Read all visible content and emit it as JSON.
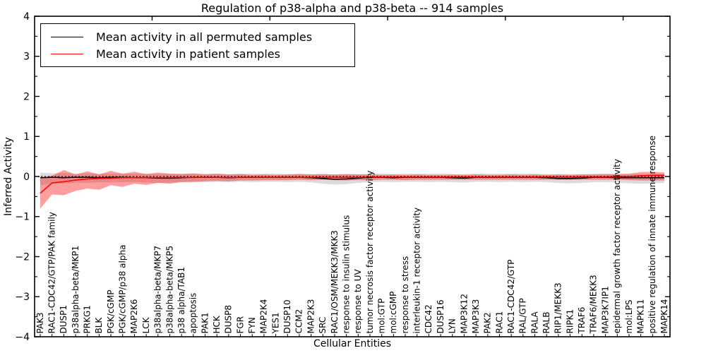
{
  "chart_data": {
    "type": "line",
    "title": "Regulation of p38-alpha and p38-beta -- 914 samples",
    "xlabel": "Cellular Entities",
    "ylabel": "Inferred Activity",
    "ylim": [
      -4,
      4
    ],
    "ytick_values": [
      -4,
      -3,
      -2,
      -1,
      0,
      1,
      2,
      3,
      4
    ],
    "ytick_labels": [
      "−4",
      "−3",
      "−2",
      "−1",
      "0",
      "1",
      "2",
      "3",
      "4"
    ],
    "grid": false,
    "zero_line_style": "black dotted",
    "legend_position": "upper-left",
    "categories": [
      "PAK3",
      "RAC1-CDC42/GTP/PAK family",
      "DUSP1",
      "p38alpha-beta/MKP1",
      "PRKG1",
      "BLK",
      "PGK/cGMP",
      "PGK/cGMP/p38 alpha",
      "MAP2K6",
      "LCK",
      "p38alpha-beta/MKP7",
      "p38alpha-beta/MKP5",
      "p38 alpha/TAB1",
      "apoptosis",
      "PAK1",
      "HCK",
      "DUSP8",
      "FGR",
      "FYN",
      "MAP2K4",
      "YES1",
      "DUSP10",
      "CCM2",
      "MAP2K3",
      "SRC",
      "RAC1/OSM/MEKK3/MKK3",
      "response to insulin stimulus",
      "response to UV",
      "tumor necrosis factor receptor activity",
      "mol:GTP",
      "mol:cGMP",
      "response to stress",
      "interleukin-1 receptor activity",
      "CDC42",
      "DUSP16",
      "LYN",
      "MAP3K12",
      "MAP3K3",
      "PAK2",
      "RAC1",
      "RAC1-CDC42/GTP",
      "RAL/GTP",
      "RALA",
      "RALB",
      "RIP1/MEKK3",
      "RIPK1",
      "TRAF6",
      "TRAF6/MEKK3",
      "MAP3K7IP1",
      "epidermal growth factor receptor activity",
      "mol:LPS",
      "MAPK11",
      "positive regulation of innate immune response",
      "MAPK14"
    ],
    "series": [
      {
        "name": "Mean activity in all permuted samples",
        "color": "#000000",
        "band_color": "#000000",
        "band_opacity": 0.14,
        "values": [
          -0.03,
          -0.02,
          -0.03,
          -0.02,
          -0.02,
          -0.03,
          -0.02,
          -0.02,
          -0.03,
          -0.03,
          -0.04,
          -0.04,
          -0.03,
          -0.02,
          -0.02,
          -0.02,
          -0.03,
          -0.02,
          -0.02,
          -0.02,
          -0.02,
          -0.02,
          -0.02,
          -0.03,
          -0.05,
          -0.07,
          -0.06,
          -0.04,
          -0.02,
          -0.02,
          -0.03,
          -0.02,
          -0.02,
          -0.02,
          -0.02,
          -0.03,
          -0.04,
          -0.02,
          -0.02,
          -0.02,
          -0.02,
          -0.02,
          -0.02,
          -0.03,
          -0.05,
          -0.05,
          -0.04,
          -0.02,
          -0.02,
          -0.03,
          -0.03,
          -0.03,
          -0.03,
          -0.03
        ],
        "upper": [
          0.1,
          0.08,
          0.09,
          0.07,
          0.08,
          0.07,
          0.07,
          0.07,
          0.07,
          0.07,
          0.06,
          0.07,
          0.07,
          0.07,
          0.07,
          0.07,
          0.06,
          0.07,
          0.07,
          0.07,
          0.07,
          0.06,
          0.07,
          0.06,
          0.06,
          0.05,
          0.06,
          0.06,
          0.07,
          0.07,
          0.06,
          0.07,
          0.07,
          0.07,
          0.07,
          0.06,
          0.06,
          0.07,
          0.07,
          0.07,
          0.07,
          0.07,
          0.07,
          0.06,
          0.06,
          0.06,
          0.06,
          0.07,
          0.07,
          0.06,
          0.06,
          0.06,
          0.06,
          0.06
        ],
        "lower": [
          -0.22,
          -0.17,
          -0.18,
          -0.15,
          -0.16,
          -0.14,
          -0.15,
          -0.14,
          -0.14,
          -0.15,
          -0.16,
          -0.15,
          -0.14,
          -0.15,
          -0.14,
          -0.13,
          -0.14,
          -0.13,
          -0.14,
          -0.13,
          -0.13,
          -0.14,
          -0.13,
          -0.15,
          -0.18,
          -0.2,
          -0.19,
          -0.16,
          -0.14,
          -0.13,
          -0.14,
          -0.13,
          -0.13,
          -0.14,
          -0.13,
          -0.14,
          -0.15,
          -0.13,
          -0.13,
          -0.14,
          -0.13,
          -0.14,
          -0.13,
          -0.14,
          -0.16,
          -0.17,
          -0.16,
          -0.14,
          -0.14,
          -0.15,
          -0.17,
          -0.18,
          -0.17,
          -0.16
        ]
      },
      {
        "name": "Mean activity in patient samples",
        "color": "#ff0000",
        "band_color": "#ff0000",
        "band_opacity": 0.38,
        "values": [
          -0.42,
          -0.16,
          -0.13,
          -0.09,
          -0.06,
          -0.05,
          -0.04,
          -0.03,
          -0.03,
          -0.025,
          -0.03,
          -0.025,
          -0.02,
          -0.025,
          -0.02,
          -0.02,
          -0.025,
          -0.02,
          -0.02,
          -0.02,
          -0.02,
          -0.02,
          -0.02,
          -0.02,
          -0.02,
          -0.02,
          -0.02,
          -0.02,
          -0.015,
          -0.015,
          -0.015,
          -0.015,
          -0.015,
          -0.015,
          -0.015,
          -0.015,
          -0.015,
          -0.015,
          -0.015,
          -0.015,
          -0.015,
          -0.015,
          -0.015,
          -0.015,
          -0.015,
          -0.015,
          -0.01,
          -0.01,
          -0.01,
          -0.005,
          0.0,
          0.02,
          0.03,
          0.03
        ],
        "upper": [
          -0.05,
          0.02,
          0.16,
          0.05,
          0.13,
          0.05,
          0.14,
          0.07,
          0.12,
          0.06,
          0.1,
          0.07,
          0.06,
          0.08,
          0.05,
          0.07,
          0.05,
          0.06,
          0.04,
          0.05,
          0.04,
          0.05,
          0.06,
          0.05,
          0.06,
          0.05,
          0.06,
          0.05,
          0.05,
          0.04,
          0.05,
          0.04,
          0.05,
          0.04,
          0.04,
          0.05,
          0.04,
          0.05,
          0.04,
          0.04,
          0.05,
          0.04,
          0.05,
          0.04,
          0.05,
          0.04,
          0.05,
          0.05,
          0.06,
          0.06,
          0.07,
          0.11,
          0.12,
          0.1
        ],
        "lower": [
          -0.8,
          -0.45,
          -0.47,
          -0.36,
          -0.3,
          -0.33,
          -0.22,
          -0.26,
          -0.18,
          -0.21,
          -0.16,
          -0.18,
          -0.14,
          -0.13,
          -0.12,
          -0.11,
          -0.12,
          -0.1,
          -0.1,
          -0.09,
          -0.09,
          -0.09,
          -0.08,
          -0.09,
          -0.08,
          -0.09,
          -0.1,
          -0.09,
          -0.09,
          -0.08,
          -0.08,
          -0.09,
          -0.08,
          -0.08,
          -0.08,
          -0.08,
          -0.08,
          -0.08,
          -0.08,
          -0.08,
          -0.08,
          -0.08,
          -0.08,
          -0.08,
          -0.08,
          -0.08,
          -0.08,
          -0.08,
          -0.08,
          -0.08,
          -0.09,
          -0.1,
          -0.1,
          -0.1
        ]
      }
    ]
  }
}
